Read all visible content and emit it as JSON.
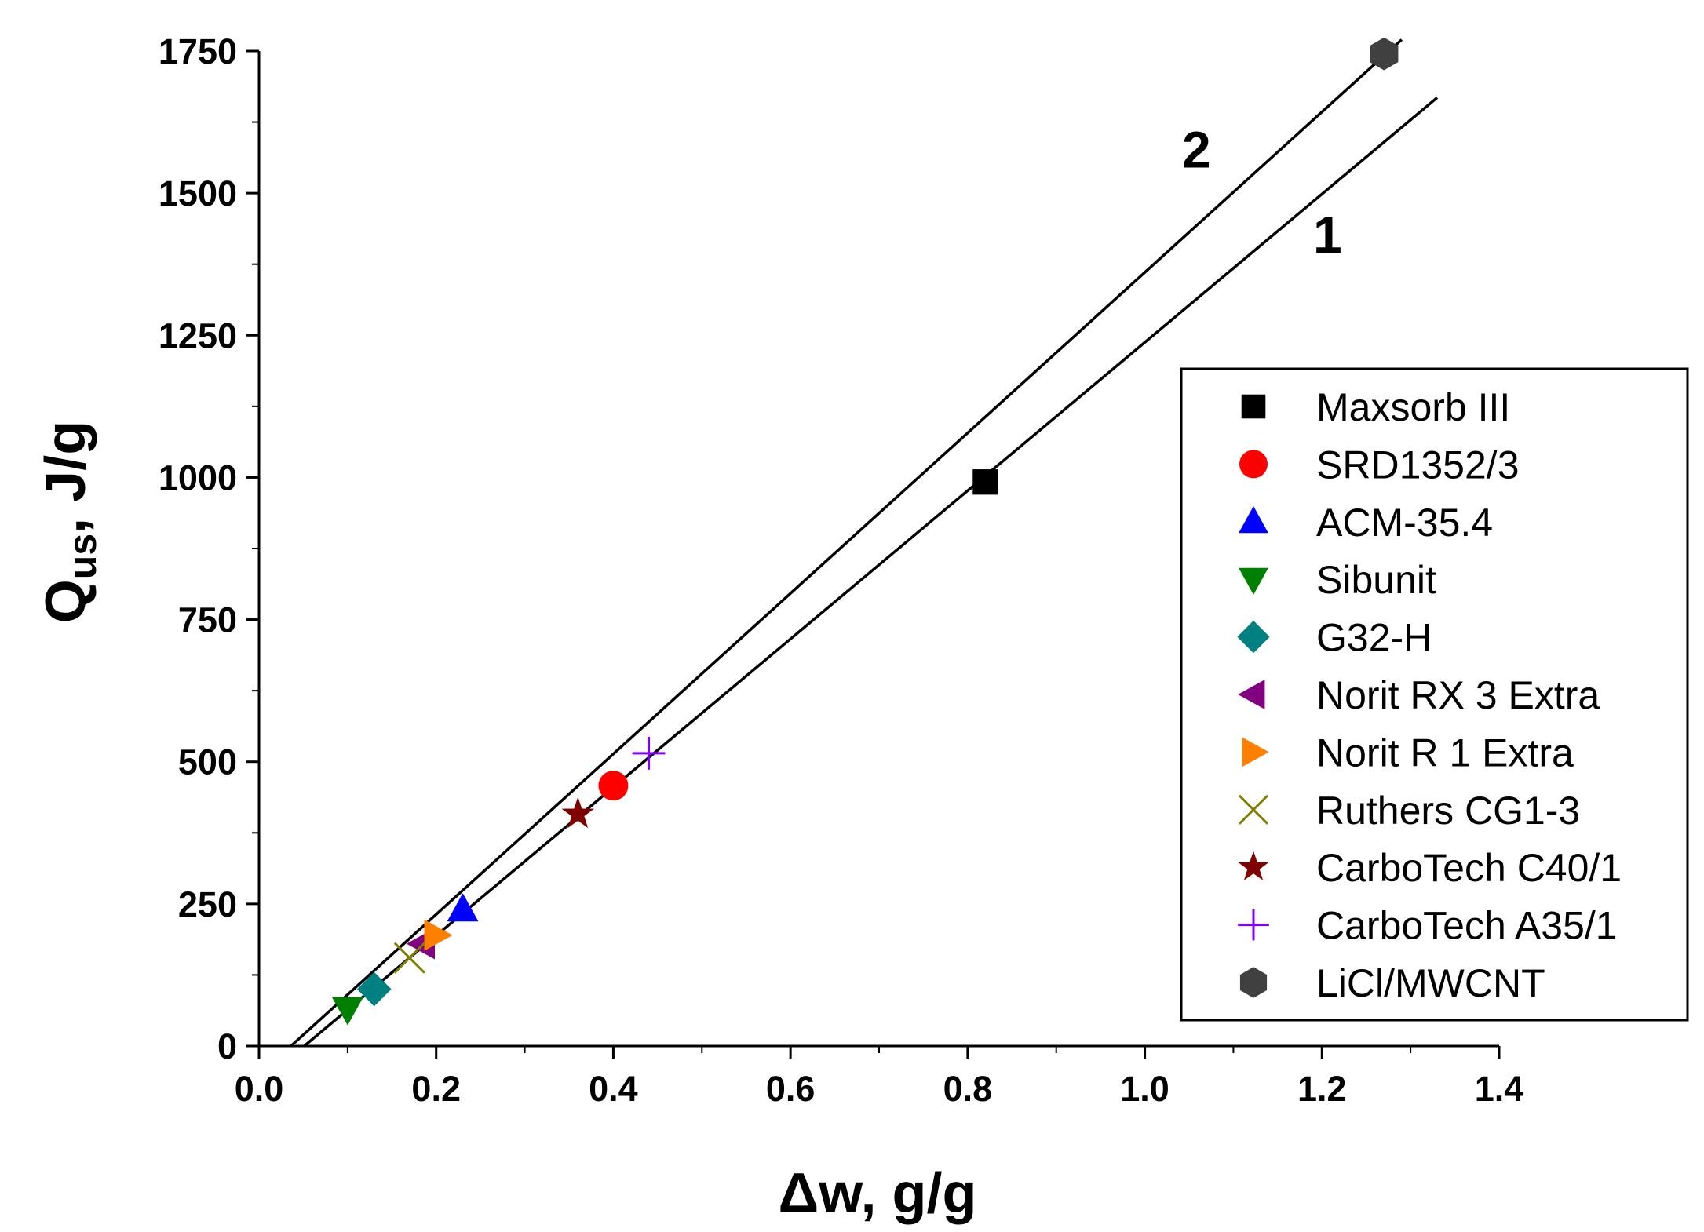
{
  "chart_data": {
    "type": "scatter",
    "xlabel": "Δw, g/g",
    "ylabel_main": "Q",
    "ylabel_sub": "us",
    "ylabel_rest": ", J/g",
    "xlim": [
      0.0,
      1.4
    ],
    "ylim": [
      0,
      1750
    ],
    "x_ticks": [
      0.0,
      0.2,
      0.4,
      0.6,
      0.8,
      1.0,
      1.2,
      1.4
    ],
    "x_tick_labels": [
      "0.0",
      "0.2",
      "0.4",
      "0.6",
      "0.8",
      "1.0",
      "1.2",
      "1.4"
    ],
    "y_ticks": [
      0,
      250,
      500,
      750,
      1000,
      1250,
      1500,
      1750
    ],
    "y_tick_labels": [
      "0",
      "250",
      "500",
      "750",
      "1000",
      "1250",
      "1500",
      "1750"
    ],
    "grid": false,
    "legend_position": "right-middle",
    "series": [
      {
        "name": "Maxsorb III",
        "marker": "square",
        "color": "#000000",
        "x": 0.82,
        "y": 992
      },
      {
        "name": "SRD1352/3",
        "marker": "circle",
        "color": "#ff0000",
        "x": 0.4,
        "y": 458
      },
      {
        "name": "ACM-35.4",
        "marker": "triangle-up",
        "color": "#0000ff",
        "x": 0.23,
        "y": 240
      },
      {
        "name": "Sibunit",
        "marker": "triangle-down",
        "color": "#008000",
        "x": 0.1,
        "y": 65
      },
      {
        "name": "G32-H",
        "marker": "diamond",
        "color": "#008080",
        "x": 0.13,
        "y": 100
      },
      {
        "name": "Norit RX 3 Extra",
        "marker": "triangle-left",
        "color": "#800080",
        "x": 0.185,
        "y": 180
      },
      {
        "name": "Norit R 1 Extra",
        "marker": "triangle-right",
        "color": "#ff8000",
        "x": 0.2,
        "y": 195
      },
      {
        "name": "Ruthers CG1-3",
        "marker": "x",
        "color": "#808000",
        "x": 0.17,
        "y": 155
      },
      {
        "name": "CarboTech C40/1",
        "marker": "star",
        "color": "#800000",
        "x": 0.36,
        "y": 408
      },
      {
        "name": "CarboTech A35/1",
        "marker": "plus",
        "color": "#8000ff",
        "x": 0.44,
        "y": 515
      },
      {
        "name": "LiCl/MWCNT",
        "marker": "hexagon",
        "color": "#404040",
        "x": 1.27,
        "y": 1745
      }
    ],
    "fit_lines": [
      {
        "label": "1",
        "x": [
          0.051,
          1.33
        ],
        "y": [
          0,
          1668
        ]
      },
      {
        "label": "2",
        "x": [
          0.036,
          1.29
        ],
        "y": [
          0,
          1770
        ]
      }
    ]
  }
}
